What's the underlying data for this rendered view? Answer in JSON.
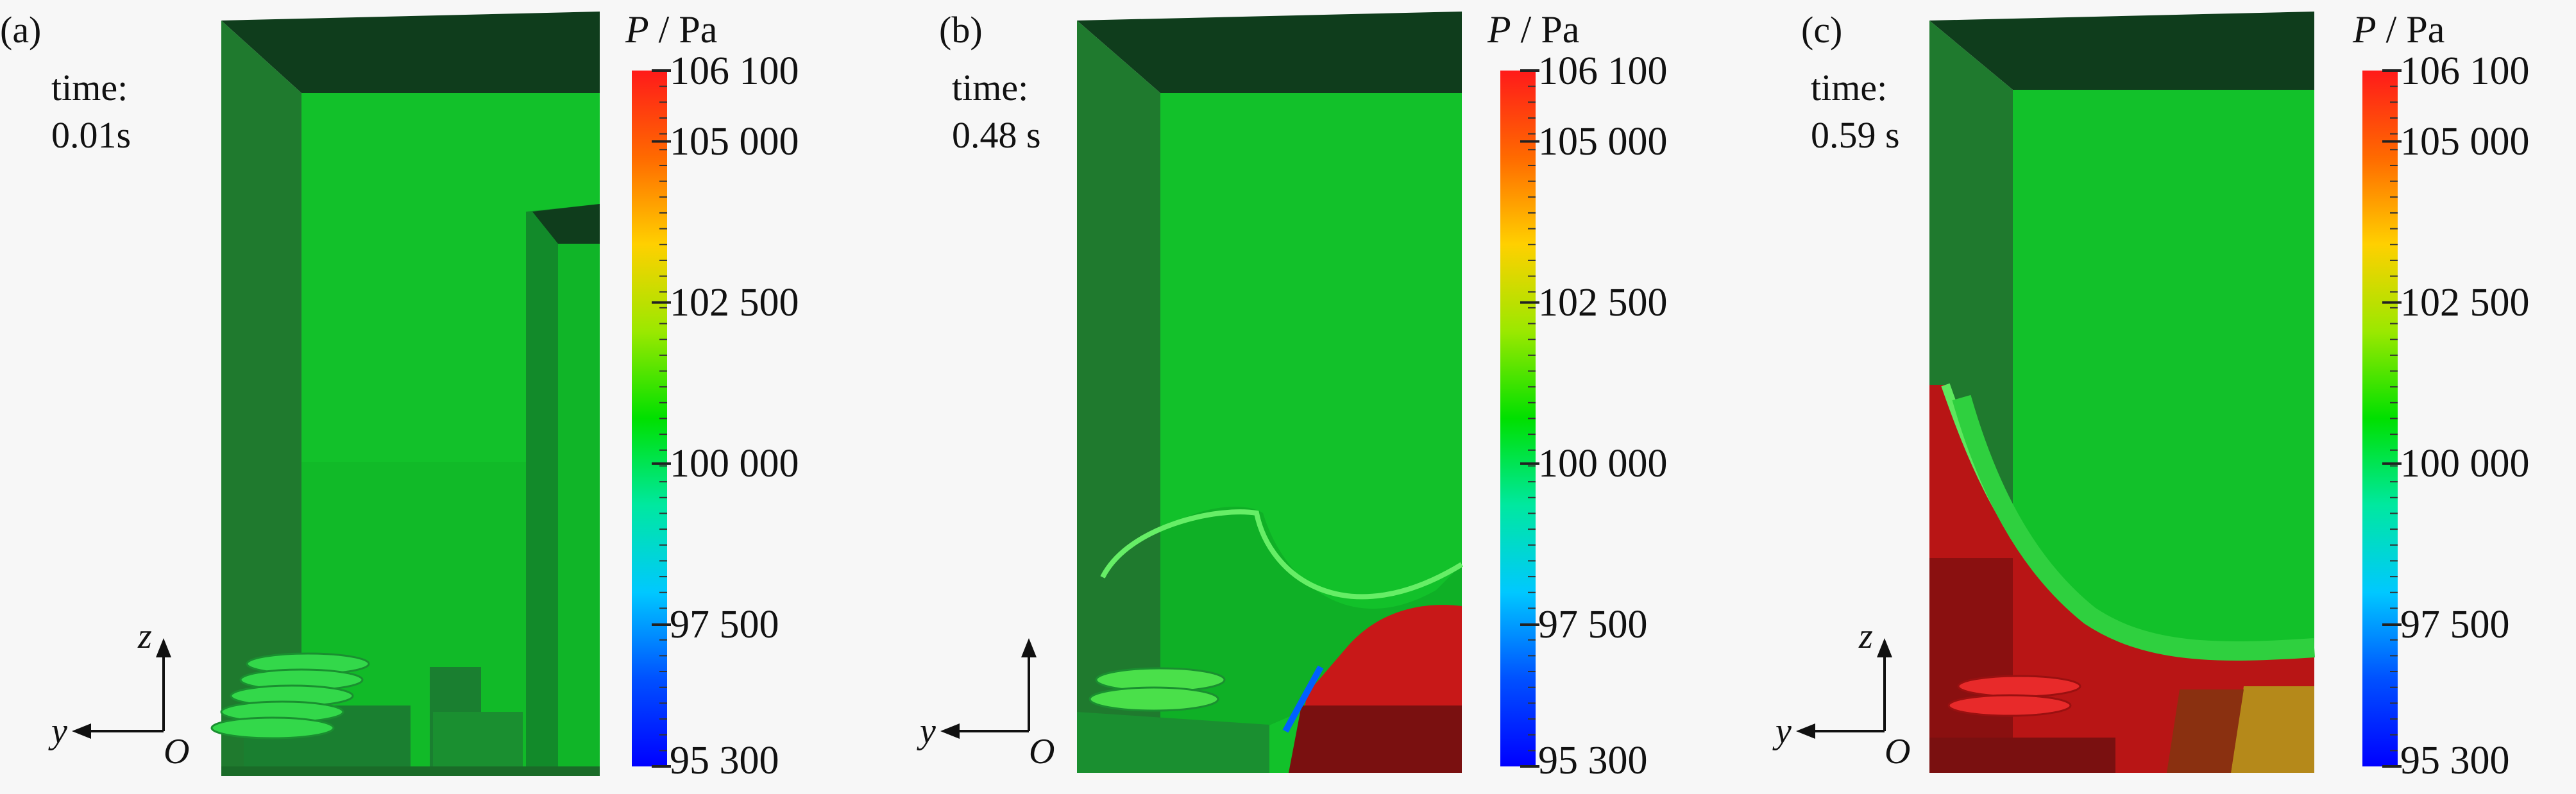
{
  "colorbar": {
    "symbol": "P",
    "unit": "Pa",
    "ticks": [
      "106 100",
      "105 000",
      "102 500",
      "100 000",
      "97 500",
      "95 300"
    ],
    "tick_values": [
      106100,
      105000,
      102500,
      100000,
      97500,
      95300
    ],
    "min": 95300,
    "max": 106100,
    "gradient_colors": [
      "#ff1a1a",
      "#ff6a00",
      "#ffd000",
      "#9be800",
      "#00e000",
      "#00e8a0",
      "#00c8ff",
      "#0050ff",
      "#0000ff"
    ]
  },
  "axes": {
    "z": "z",
    "y": "y",
    "origin": "O"
  },
  "panels": [
    {
      "label": "(a)",
      "time_caption": "time:",
      "time_value": "0.01s"
    },
    {
      "label": "(b)",
      "time_caption": "time:",
      "time_value": "0.48 s"
    },
    {
      "label": "(c)",
      "time_caption": "time:",
      "time_value": "0.59 s"
    }
  ],
  "colors": {
    "green_field": "#12c12a",
    "dark_green_wall": "#1f7a2e",
    "top_dark": "#0f3d1c",
    "high_pressure_red": "#c81818",
    "dark_red": "#7a1010"
  }
}
